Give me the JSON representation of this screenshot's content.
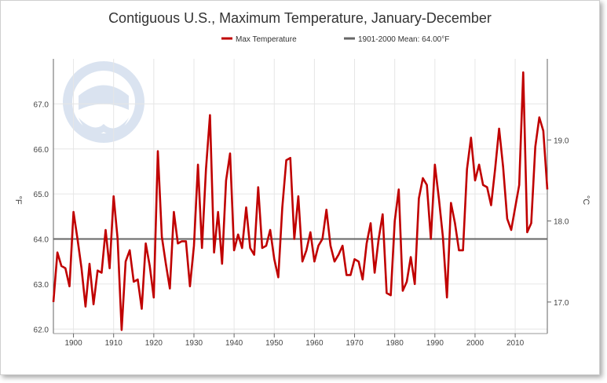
{
  "chart_data": {
    "type": "line",
    "title": "Contiguous U.S., Maximum Temperature, January-December",
    "ylabel_left": "°F",
    "ylabel_right": "°C",
    "xlim": [
      1895,
      2018
    ],
    "ylim": [
      61.9,
      68.0
    ],
    "x_ticks": [
      "1900",
      "1910",
      "1920",
      "1930",
      "1940",
      "1950",
      "1960",
      "1970",
      "1980",
      "1990",
      "2000",
      "2010"
    ],
    "y_ticks_left": [
      "62.0",
      "63.0",
      "64.0",
      "65.0",
      "66.0",
      "67.0"
    ],
    "y_ticks_right": [
      "17.0",
      "18.0",
      "19.0"
    ],
    "grid": true,
    "legend_position": "top",
    "mean_value": 64.0,
    "series": [
      {
        "name": "Max Temperature",
        "color": "#c00000",
        "x": [
          1895,
          1896,
          1897,
          1898,
          1899,
          1900,
          1901,
          1902,
          1903,
          1904,
          1905,
          1906,
          1907,
          1908,
          1909,
          1910,
          1911,
          1912,
          1913,
          1914,
          1915,
          1916,
          1917,
          1918,
          1919,
          1920,
          1921,
          1922,
          1923,
          1924,
          1925,
          1926,
          1927,
          1928,
          1929,
          1930,
          1931,
          1932,
          1933,
          1934,
          1935,
          1936,
          1937,
          1938,
          1939,
          1940,
          1941,
          1942,
          1943,
          1944,
          1945,
          1946,
          1947,
          1948,
          1949,
          1950,
          1951,
          1952,
          1953,
          1954,
          1955,
          1956,
          1957,
          1958,
          1959,
          1960,
          1961,
          1962,
          1963,
          1964,
          1965,
          1966,
          1967,
          1968,
          1969,
          1970,
          1971,
          1972,
          1973,
          1974,
          1975,
          1976,
          1977,
          1978,
          1979,
          1980,
          1981,
          1982,
          1983,
          1984,
          1985,
          1986,
          1987,
          1988,
          1989,
          1990,
          1991,
          1992,
          1993,
          1994,
          1995,
          1996,
          1997,
          1998,
          1999,
          2000,
          2001,
          2002,
          2003,
          2004,
          2005,
          2006,
          2007,
          2008,
          2009,
          2010,
          2011,
          2012,
          2013,
          2014,
          2015,
          2016,
          2017,
          2018
        ],
        "values": [
          62.6,
          63.7,
          63.4,
          63.35,
          62.95,
          64.6,
          64.0,
          63.35,
          62.5,
          63.45,
          62.55,
          63.3,
          63.25,
          64.2,
          63.35,
          64.95,
          64.0,
          61.98,
          63.5,
          63.75,
          63.05,
          63.1,
          62.45,
          63.9,
          63.4,
          62.7,
          65.95,
          64.05,
          63.45,
          62.9,
          64.6,
          63.9,
          63.95,
          63.95,
          62.95,
          63.85,
          65.65,
          63.8,
          65.55,
          66.75,
          63.7,
          64.6,
          63.45,
          65.3,
          65.9,
          63.75,
          64.1,
          63.8,
          64.7,
          63.8,
          63.65,
          65.15,
          63.8,
          63.85,
          64.2,
          63.55,
          63.15,
          64.7,
          65.75,
          65.8,
          64.0,
          64.95,
          63.5,
          63.75,
          64.15,
          63.5,
          63.85,
          64.0,
          64.65,
          63.85,
          63.5,
          63.65,
          63.85,
          63.2,
          63.2,
          63.55,
          63.5,
          63.1,
          63.9,
          64.35,
          63.25,
          64.0,
          64.55,
          62.8,
          62.75,
          64.4,
          65.1,
          62.85,
          63.05,
          63.6,
          63.0,
          64.9,
          65.35,
          65.2,
          64.0,
          65.65,
          64.9,
          64.05,
          62.7,
          64.8,
          64.35,
          63.75,
          63.75,
          65.55,
          66.25,
          65.3,
          65.65,
          65.2,
          65.15,
          64.75,
          65.55,
          66.45,
          65.6,
          64.45,
          64.2,
          64.7,
          65.2,
          67.7,
          64.15,
          64.35,
          66.05,
          66.7,
          66.4,
          65.1
        ]
      },
      {
        "name": "1901-2000 Mean: 64.00°F",
        "color": "#666666",
        "constant": 64.0
      }
    ]
  }
}
